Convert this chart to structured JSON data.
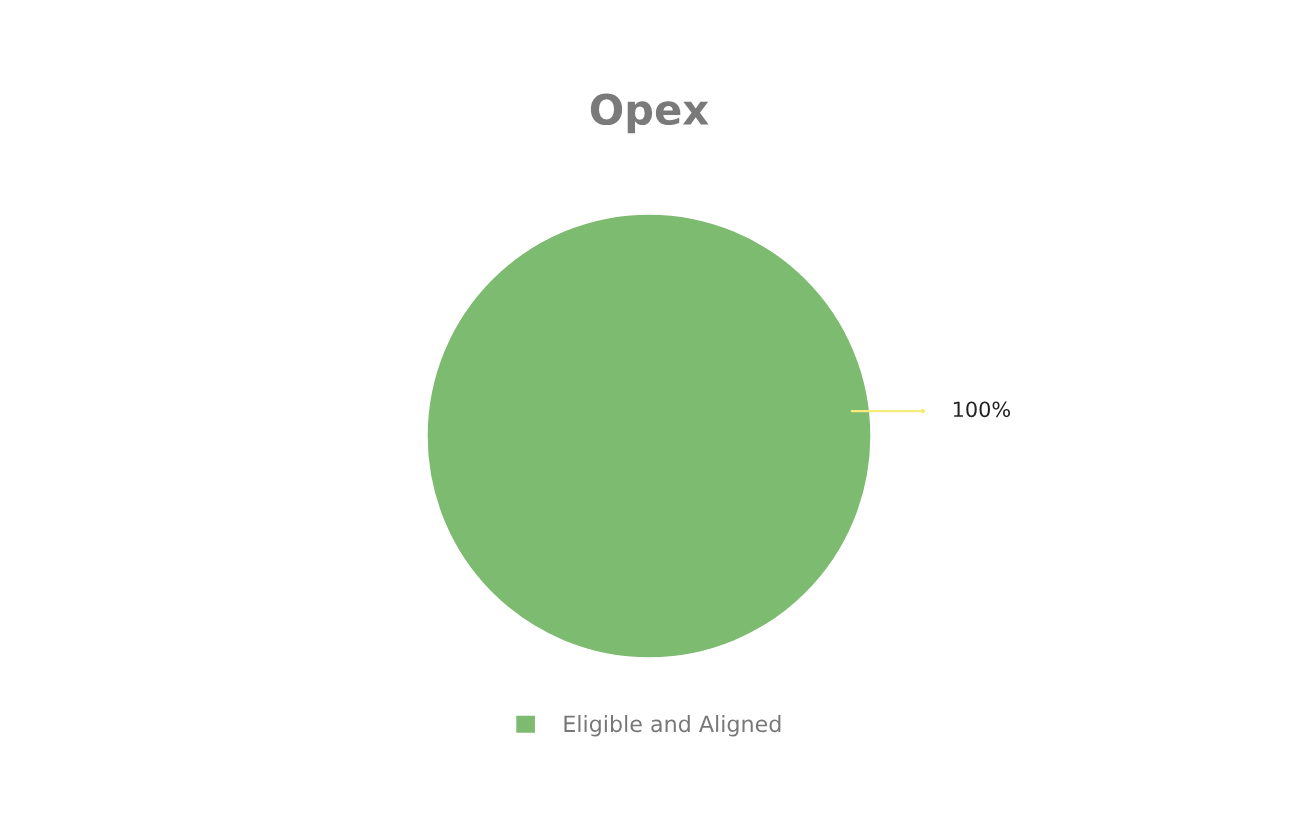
{
  "chart_data": {
    "type": "pie",
    "title": "Opex",
    "categories": [
      "Eligible and Aligned"
    ],
    "values": [
      100
    ],
    "colors": [
      "#7dbb70"
    ],
    "value_labels": [
      "100%"
    ],
    "legend": "bottom"
  }
}
